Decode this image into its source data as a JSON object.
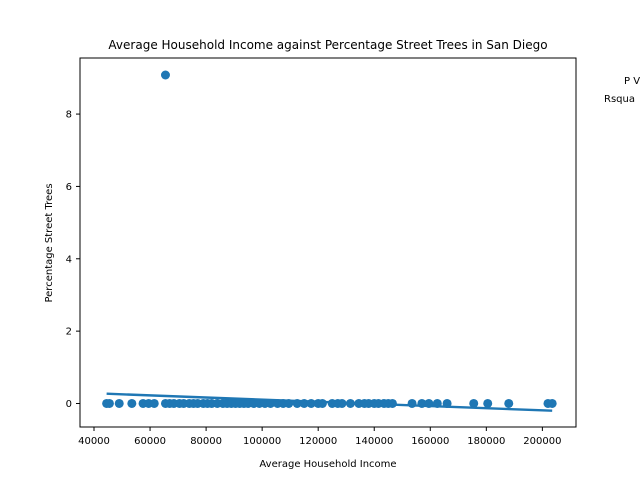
{
  "chart_data": {
    "type": "scatter",
    "title": "Average Household Income against Percentage Street Trees in San Diego",
    "xlabel": "Average Household Income",
    "ylabel": "Percentage Street Trees",
    "xlim": [
      35000,
      212000
    ],
    "ylim": [
      -0.65,
      9.55
    ],
    "xticks": [
      40000,
      60000,
      80000,
      100000,
      120000,
      140000,
      160000,
      180000,
      200000
    ],
    "xtick_labels": [
      "40000",
      "60000",
      "80000",
      "100000",
      "120000",
      "140000",
      "160000",
      "180000",
      "200000"
    ],
    "yticks": [
      0,
      2,
      4,
      6,
      8
    ],
    "ytick_labels": [
      "0",
      "2",
      "4",
      "6",
      "8"
    ],
    "grid": false,
    "annotations": [
      "P V",
      "Rsqua"
    ],
    "point_color": "#1f77b4",
    "points": [
      {
        "x": 65500,
        "y": 9.08
      },
      {
        "x": 44500,
        "y": 0
      },
      {
        "x": 45500,
        "y": 0
      },
      {
        "x": 49000,
        "y": 0
      },
      {
        "x": 53500,
        "y": 0
      },
      {
        "x": 57500,
        "y": 0
      },
      {
        "x": 59500,
        "y": 0
      },
      {
        "x": 61500,
        "y": 0
      },
      {
        "x": 65500,
        "y": 0
      },
      {
        "x": 67000,
        "y": 0
      },
      {
        "x": 68500,
        "y": 0
      },
      {
        "x": 70500,
        "y": 0
      },
      {
        "x": 72000,
        "y": 0
      },
      {
        "x": 74000,
        "y": 0
      },
      {
        "x": 75500,
        "y": 0
      },
      {
        "x": 77000,
        "y": 0
      },
      {
        "x": 79000,
        "y": 0
      },
      {
        "x": 80500,
        "y": 0
      },
      {
        "x": 82000,
        "y": 0
      },
      {
        "x": 84000,
        "y": 0
      },
      {
        "x": 86000,
        "y": 0
      },
      {
        "x": 87500,
        "y": 0
      },
      {
        "x": 89000,
        "y": 0
      },
      {
        "x": 90500,
        "y": 0
      },
      {
        "x": 92000,
        "y": 0
      },
      {
        "x": 93500,
        "y": 0
      },
      {
        "x": 95000,
        "y": 0
      },
      {
        "x": 97000,
        "y": 0
      },
      {
        "x": 99000,
        "y": 0
      },
      {
        "x": 101000,
        "y": 0
      },
      {
        "x": 103000,
        "y": 0
      },
      {
        "x": 105500,
        "y": 0
      },
      {
        "x": 107500,
        "y": 0
      },
      {
        "x": 109500,
        "y": 0
      },
      {
        "x": 112500,
        "y": 0
      },
      {
        "x": 115000,
        "y": 0
      },
      {
        "x": 117500,
        "y": 0
      },
      {
        "x": 120000,
        "y": 0
      },
      {
        "x": 121500,
        "y": 0
      },
      {
        "x": 125000,
        "y": 0
      },
      {
        "x": 127000,
        "y": 0
      },
      {
        "x": 128500,
        "y": 0
      },
      {
        "x": 131500,
        "y": 0
      },
      {
        "x": 134500,
        "y": 0
      },
      {
        "x": 136500,
        "y": 0
      },
      {
        "x": 138000,
        "y": 0
      },
      {
        "x": 140000,
        "y": 0
      },
      {
        "x": 141500,
        "y": 0
      },
      {
        "x": 143500,
        "y": 0
      },
      {
        "x": 145000,
        "y": 0
      },
      {
        "x": 146500,
        "y": 0
      },
      {
        "x": 153500,
        "y": 0
      },
      {
        "x": 157000,
        "y": 0
      },
      {
        "x": 159500,
        "y": 0
      },
      {
        "x": 162500,
        "y": 0
      },
      {
        "x": 166000,
        "y": 0
      },
      {
        "x": 175500,
        "y": 0
      },
      {
        "x": 180500,
        "y": 0
      },
      {
        "x": 188000,
        "y": 0
      },
      {
        "x": 202000,
        "y": 0
      },
      {
        "x": 203500,
        "y": 0
      }
    ],
    "trendline": {
      "color": "#1f77b4",
      "x": [
        44500,
        203500
      ],
      "y": [
        0.27,
        -0.2
      ]
    }
  }
}
